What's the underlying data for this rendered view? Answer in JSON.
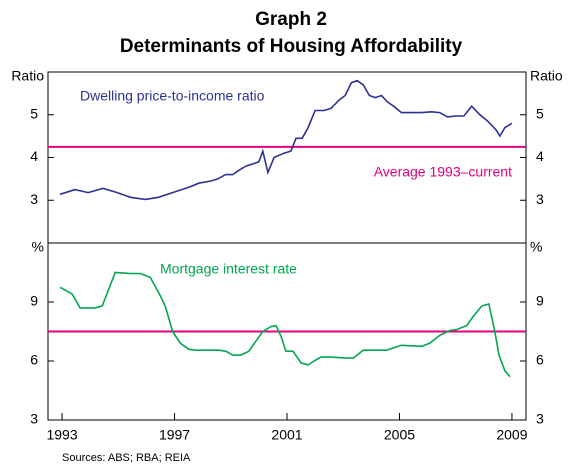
{
  "title": "Graph 2",
  "subtitle": "Determinants of Housing Affordability",
  "source": "Sources: ABS; RBA; REIA",
  "chart_data": [
    {
      "type": "line",
      "y_label": "Ratio",
      "xlim": [
        1992.5,
        2009.5
      ],
      "ylim": [
        2,
        6
      ],
      "yticks": [
        3,
        4,
        5
      ],
      "series": [
        {
          "name": "Dwelling price-to-income ratio",
          "color": "#2e3192",
          "x": [
            1992.93,
            1993.46,
            1993.93,
            1994.46,
            1994.96,
            1995.43,
            1995.96,
            1996.43,
            1996.93,
            1997.57,
            1997.86,
            1998.29,
            1998.54,
            1998.82,
            1999.07,
            1999.29,
            1999.54,
            1999.79,
            2000.0,
            2000.14,
            2000.32,
            2000.54,
            2000.89,
            2001.14,
            2001.32,
            2001.54,
            2001.75,
            2002.0,
            2002.32,
            2002.57,
            2002.86,
            2003.07,
            2003.29,
            2003.5,
            2003.71,
            2003.93,
            2004.14,
            2004.36,
            2004.57,
            2004.79,
            2005.07,
            2005.43,
            2005.79,
            2006.14,
            2006.43,
            2006.71,
            2007.0,
            2007.29,
            2007.57,
            2007.86,
            2008.14,
            2008.43,
            2008.57,
            2008.75,
            2009.0
          ],
          "values": [
            3.14,
            3.25,
            3.18,
            3.28,
            3.18,
            3.07,
            3.02,
            3.07,
            3.18,
            3.32,
            3.4,
            3.45,
            3.5,
            3.6,
            3.6,
            3.7,
            3.8,
            3.85,
            3.9,
            4.15,
            3.65,
            4.0,
            4.1,
            4.15,
            4.45,
            4.45,
            4.7,
            5.1,
            5.1,
            5.15,
            5.35,
            5.45,
            5.75,
            5.8,
            5.7,
            5.45,
            5.4,
            5.45,
            5.3,
            5.2,
            5.05,
            5.05,
            5.05,
            5.07,
            5.05,
            4.95,
            4.97,
            4.97,
            5.2,
            5.0,
            4.85,
            4.65,
            4.5,
            4.7,
            4.8
          ]
        }
      ],
      "hlines": [
        {
          "value": 4.25,
          "label": "Average 1993–current",
          "color": "#e5007d"
        }
      ]
    },
    {
      "type": "line",
      "y_label": "%",
      "xlim": [
        1992.5,
        2009.5
      ],
      "ylim": [
        3,
        12
      ],
      "yticks": [
        3,
        6,
        9
      ],
      "xticks": [
        1993,
        1997,
        2001,
        2005,
        2009
      ],
      "series": [
        {
          "name": "Mortgage interest rate",
          "color": "#00a650",
          "x": [
            1992.93,
            1993.36,
            1993.64,
            1994.18,
            1994.43,
            1994.89,
            1995.43,
            1995.79,
            1996.14,
            1996.5,
            1996.68,
            1996.93,
            1997.21,
            1997.5,
            1997.75,
            1998.29,
            1998.57,
            1998.82,
            1999.07,
            1999.36,
            1999.64,
            1999.89,
            2000.14,
            2000.43,
            2000.61,
            2000.79,
            2000.96,
            2001.21,
            2001.5,
            2001.75,
            2001.96,
            2002.21,
            2002.57,
            2003.11,
            2003.36,
            2003.71,
            2004.18,
            2004.54,
            2005.07,
            2005.79,
            2006.07,
            2006.43,
            2006.79,
            2007.04,
            2007.39,
            2007.64,
            2007.93,
            2008.18,
            2008.39,
            2008.54,
            2008.75,
            2008.93
          ],
          "values": [
            9.75,
            9.4,
            8.7,
            8.7,
            8.8,
            10.5,
            10.45,
            10.45,
            10.25,
            9.3,
            8.75,
            7.5,
            6.9,
            6.6,
            6.55,
            6.55,
            6.55,
            6.5,
            6.3,
            6.3,
            6.5,
            7.0,
            7.5,
            7.75,
            7.8,
            7.25,
            6.5,
            6.5,
            5.9,
            5.8,
            6.0,
            6.2,
            6.2,
            6.15,
            6.15,
            6.55,
            6.55,
            6.55,
            6.8,
            6.75,
            6.9,
            7.3,
            7.55,
            7.6,
            7.8,
            8.3,
            8.8,
            8.9,
            7.5,
            6.3,
            5.5,
            5.2
          ]
        }
      ],
      "hlines": [
        {
          "value": 7.5,
          "color": "#e5007d"
        }
      ]
    }
  ]
}
